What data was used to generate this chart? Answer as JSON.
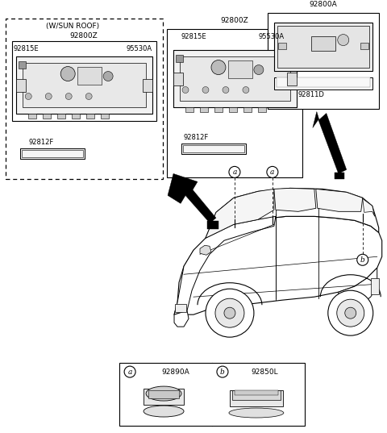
{
  "bg_color": "#ffffff",
  "labels": {
    "sunroof_tag": "(W/SUN ROOF)",
    "label_92800Z_left": "92800Z",
    "label_92800Z_mid": "92800Z",
    "label_92800A": "92800A",
    "label_92815E_left": "92815E",
    "label_95530A_left": "95530A",
    "label_92815E_mid": "92815E",
    "label_95530A_mid": "95530A",
    "label_92812F_left": "92812F",
    "label_92812F_mid": "92812F",
    "label_92811D": "92811D",
    "label_92890A": "92890A",
    "label_92850L": "92850L"
  },
  "figsize": [
    4.8,
    5.37
  ],
  "dpi": 100
}
